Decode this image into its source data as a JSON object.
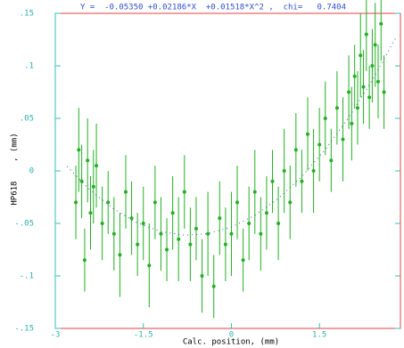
{
  "chart_data": {
    "type": "scatter",
    "title": "Y =  -0.05350 +0.02186*X  +0.01518*X^2 ,  chi=   0.7404",
    "x_label": "Calc. position, (mm)",
    "y_label": "HP618    , (mm)",
    "xlim": [
      -3,
      2.88
    ],
    "ylim": [
      -0.15,
      0.15
    ],
    "xticks": [
      -3,
      {
        "value": -1.5,
        "label": "-1.5"
      },
      0,
      {
        "value": 1.5,
        "label": "1.5"
      }
    ],
    "yticks": [
      {
        "value": -0.15,
        "label": "-.15"
      },
      {
        "value": -0.1,
        "label": "-.1"
      },
      {
        "value": -0.05,
        "label": "-.05"
      },
      0,
      {
        "value": 0.05,
        "label": ".05"
      },
      {
        "value": 0.1,
        "label": ".1"
      },
      {
        "value": 0.15,
        "label": ".15"
      }
    ],
    "series": [
      {
        "color": "#22b022",
        "x": [
          -2.65,
          -2.6,
          -2.55,
          -2.5,
          -2.45,
          -2.4,
          -2.35,
          -2.3,
          -2.2,
          -2.1,
          -2.0,
          -1.9,
          -1.8,
          -1.7,
          -1.6,
          -1.5,
          -1.4,
          -1.3,
          -1.2,
          -1.1,
          -1.0,
          -0.9,
          -0.8,
          -0.7,
          -0.6,
          -0.5,
          -0.4,
          -0.3,
          -0.2,
          -0.1,
          0,
          0.1,
          0.2,
          0.3,
          0.4,
          0.5,
          0.6,
          0.7,
          0.8,
          0.9,
          1.0,
          1.1,
          1.2,
          1.3,
          1.4,
          1.5,
          1.6,
          1.7,
          1.8,
          1.9,
          2.0,
          2.05,
          2.1,
          2.15,
          2.2,
          2.25,
          2.3,
          2.35,
          2.4,
          2.45,
          2.5,
          2.55,
          2.6
        ],
        "values": [
          -0.03,
          0.02,
          -0.01,
          -0.085,
          0.01,
          -0.04,
          -0.015,
          0.005,
          -0.05,
          -0.03,
          -0.06,
          -0.08,
          -0.02,
          -0.045,
          -0.07,
          -0.05,
          -0.09,
          -0.03,
          -0.06,
          -0.075,
          -0.04,
          -0.065,
          -0.02,
          -0.07,
          -0.055,
          -0.1,
          -0.06,
          -0.11,
          -0.045,
          -0.07,
          -0.06,
          -0.03,
          -0.085,
          -0.05,
          -0.02,
          -0.06,
          -0.04,
          -0.01,
          -0.05,
          0.0,
          -0.03,
          0.02,
          -0.01,
          0.035,
          0.0,
          0.025,
          0.05,
          0.01,
          0.06,
          0.03,
          0.075,
          0.045,
          0.09,
          0.06,
          0.11,
          0.08,
          0.13,
          0.07,
          0.1,
          0.12,
          0.085,
          0.14,
          0.075
        ],
        "errors": [
          0.035,
          0.04,
          0.035,
          0.03,
          0.04,
          0.035,
          0.035,
          0.04,
          0.035,
          0.03,
          0.035,
          0.04,
          0.035,
          0.035,
          0.03,
          0.035,
          0.04,
          0.035,
          0.035,
          0.03,
          0.035,
          0.04,
          0.035,
          0.035,
          0.03,
          0.035,
          0.04,
          0.03,
          0.035,
          0.035,
          0.04,
          0.035,
          0.03,
          0.035,
          0.04,
          0.035,
          0.035,
          0.03,
          0.035,
          0.04,
          0.035,
          0.035,
          0.03,
          0.035,
          0.04,
          0.035,
          0.035,
          0.03,
          0.035,
          0.04,
          0.035,
          0.035,
          0.03,
          0.035,
          0.04,
          0.035,
          0.035,
          0.03,
          0.035,
          0.04,
          0.035,
          0.035,
          0.035
        ]
      },
      {
        "color": "#4060a0",
        "style": "dotted",
        "x": [
          -2.8,
          -2.4,
          -2.0,
          -1.6,
          -1.2,
          -0.8,
          -0.4,
          0,
          0.4,
          0.8,
          1.2,
          1.6,
          2.0,
          2.4,
          2.8
        ],
        "values": [
          0.0043,
          -0.0186,
          -0.0365,
          -0.0496,
          -0.0578,
          -0.0613,
          -0.0598,
          -0.0535,
          -0.0424,
          -0.0263,
          -0.0054,
          0.0204,
          0.0509,
          0.0864,
          0.1267
        ]
      }
    ]
  }
}
